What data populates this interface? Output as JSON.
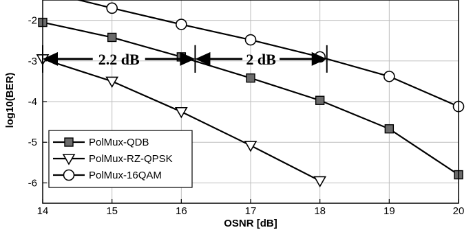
{
  "chart_data": {
    "type": "line",
    "xlabel": "OSNR [dB]",
    "ylabel": "log10(BER)",
    "xlim": [
      14,
      20
    ],
    "ylim": [
      -6.5,
      -1.5
    ],
    "x_ticks": [
      14,
      15,
      16,
      17,
      18,
      19,
      20
    ],
    "y_ticks": [
      -2,
      -3,
      -4,
      -5,
      -6
    ],
    "grid": "on",
    "legend_position": "bottom-left",
    "series": [
      {
        "name": "PolMux-QDB",
        "marker": "square-filled",
        "color": "#6b6b6b",
        "x": [
          14,
          15,
          16,
          17,
          18,
          19,
          20
        ],
        "y": [
          -2.05,
          -2.42,
          -2.9,
          -3.42,
          -3.97,
          -4.67,
          -5.8
        ]
      },
      {
        "name": "PolMux-RZ-QPSK",
        "marker": "triangle-down-open",
        "color": "#ffffff",
        "x": [
          14,
          15,
          16,
          17,
          18
        ],
        "y": [
          -2.95,
          -3.5,
          -4.25,
          -5.08,
          -5.95
        ]
      },
      {
        "name": "PolMux-16QAM",
        "marker": "circle-open",
        "color": "#ffffff",
        "x": [
          14,
          15,
          16,
          17,
          18,
          19,
          20
        ],
        "y": [
          -1.28,
          -1.7,
          -2.1,
          -2.48,
          -2.9,
          -3.38,
          -4.12
        ]
      }
    ],
    "annotations": [
      {
        "text": "2.2 dB",
        "x_from": 14,
        "x_to": 16.2,
        "y": -2.95
      },
      {
        "text": "2 dB",
        "x_from": 16.2,
        "x_to": 18.1,
        "y": -2.95
      }
    ]
  }
}
